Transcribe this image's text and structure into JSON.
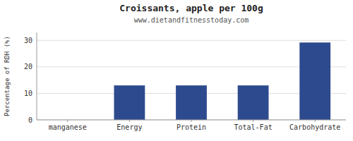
{
  "chart_data": {
    "type": "bar",
    "title": "Croissants, apple per 100g",
    "subtitle": "www.dietandfitnesstoday.com",
    "ylabel": "Percentage of RDH (%)",
    "categories": [
      "manganese",
      "Energy",
      "Protein",
      "Total-Fat",
      "Carbohydrate"
    ],
    "values": [
      0.0,
      13.0,
      13.0,
      13.0,
      29.2
    ],
    "color": "#2e4a8e",
    "ylim": [
      0,
      33
    ],
    "yticks": [
      0,
      10,
      20,
      30
    ],
    "grid": true
  }
}
